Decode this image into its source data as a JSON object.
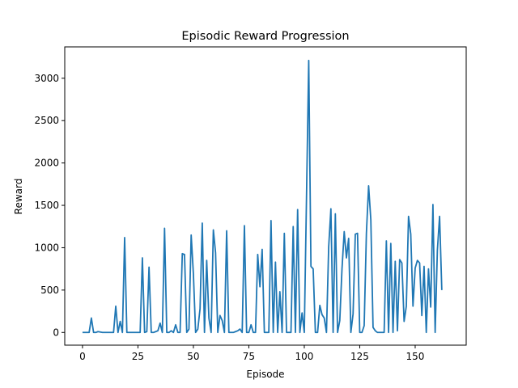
{
  "chart_data": {
    "type": "line",
    "title": "Episodic Reward Progression",
    "xlabel": "Episode",
    "ylabel": "Reward",
    "xlim": [
      -8,
      173
    ],
    "ylim": [
      -150,
      3370
    ],
    "xticks": [
      0,
      25,
      50,
      75,
      100,
      125,
      150
    ],
    "yticks": [
      0,
      500,
      1000,
      1500,
      2000,
      2500,
      3000
    ],
    "grid": false,
    "color": "#1f77b4",
    "series": [
      {
        "values": [
          0,
          0,
          0,
          0,
          170,
          0,
          0,
          10,
          5,
          0,
          0,
          0,
          0,
          0,
          0,
          310,
          0,
          130,
          0,
          1120,
          0,
          0,
          0,
          0,
          0,
          0,
          0,
          880,
          0,
          10,
          770,
          0,
          0,
          10,
          20,
          110,
          0,
          1230,
          0,
          0,
          20,
          0,
          90,
          0,
          0,
          930,
          920,
          0,
          40,
          1150,
          690,
          0,
          40,
          280,
          1290,
          0,
          850,
          170,
          0,
          1210,
          940,
          0,
          200,
          140,
          0,
          1200,
          0,
          0,
          0,
          10,
          20,
          40,
          0,
          1260,
          0,
          0,
          90,
          0,
          0,
          920,
          540,
          980,
          0,
          0,
          0,
          1320,
          0,
          830,
          0,
          480,
          0,
          1170,
          0,
          0,
          0,
          1250,
          0,
          1450,
          0,
          230,
          0,
          1600,
          3210,
          780,
          750,
          0,
          0,
          320,
          210,
          170,
          0,
          1010,
          1460,
          0,
          1400,
          0,
          140,
          750,
          1190,
          880,
          1110,
          0,
          220,
          1160,
          1170,
          0,
          0,
          80,
          1170,
          1730,
          1330,
          60,
          20,
          0,
          0,
          0,
          0,
          1080,
          0,
          1050,
          0,
          840,
          20,
          860,
          820,
          130,
          310,
          1370,
          1160,
          310,
          760,
          850,
          820,
          200,
          780,
          0,
          750,
          300,
          1510,
          0,
          970,
          1370,
          500
        ]
      }
    ]
  }
}
